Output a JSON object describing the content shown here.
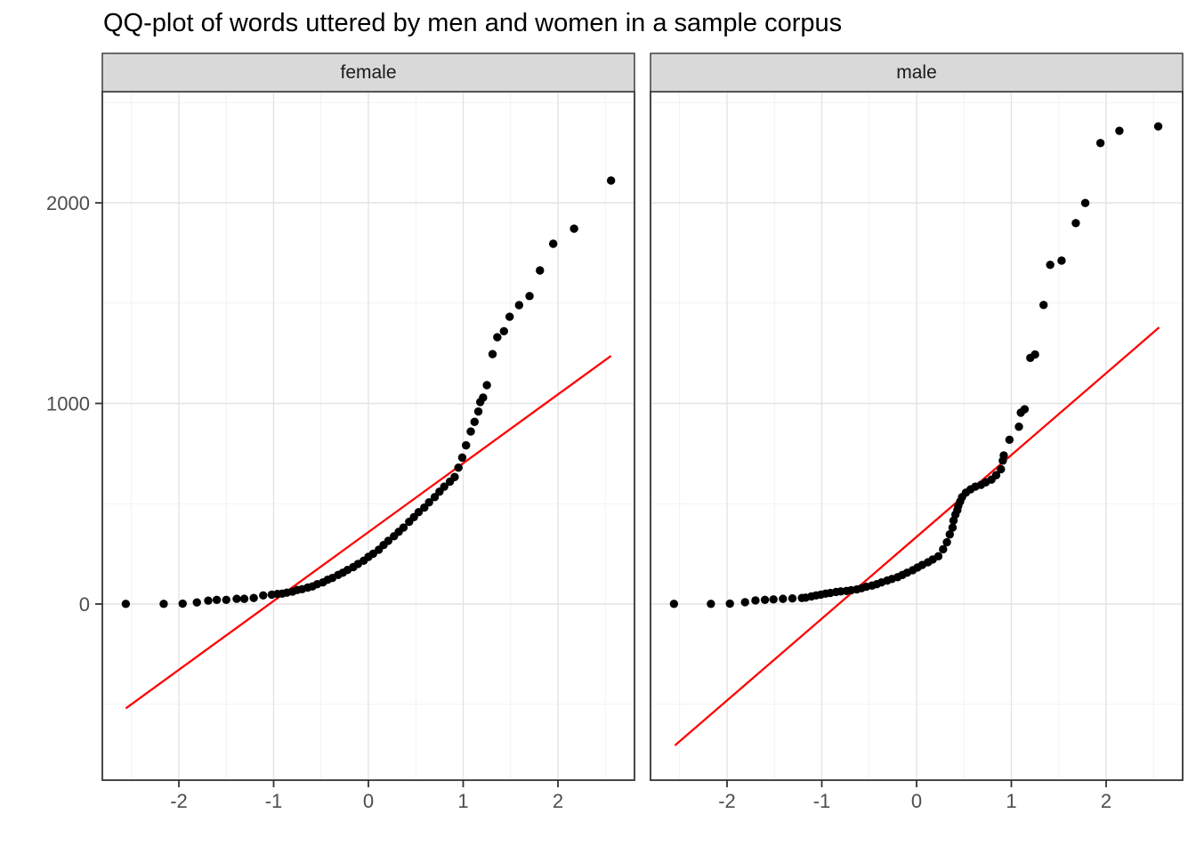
{
  "title": "QQ-plot of words uttered by men and women in a sample corpus",
  "chart_data": {
    "type": "scatter",
    "subtype": "faceted-qq-plot",
    "title": "QQ-plot of words uttered by men and women in a sample corpus",
    "xlabel": "",
    "ylabel": "",
    "grid": true,
    "legend": "none",
    "point_color": "#000000",
    "qq_line_color": "#FF0000",
    "strip_fill": "#D9D9D9",
    "xlim": [
      -2.81,
      2.81
    ],
    "ylim": [
      -878,
      2554
    ],
    "x_ticks": [
      -2,
      -1,
      0,
      1,
      2
    ],
    "y_ticks": [
      0,
      1000,
      2000
    ],
    "x_minor": [
      -2.5,
      -1.5,
      -0.5,
      0.5,
      1.5,
      2.5
    ],
    "y_minor": [
      -500,
      500,
      1500,
      2500
    ],
    "facets": [
      {
        "label": "female",
        "qq_line": {
          "x1": -2.56,
          "y1": -520,
          "x2": 2.56,
          "y2": 1237
        },
        "points": [
          [
            -2.56,
            1
          ],
          [
            -2.16,
            1
          ],
          [
            -1.96,
            2
          ],
          [
            -1.81,
            8
          ],
          [
            -1.69,
            17
          ],
          [
            -1.6,
            21
          ],
          [
            -1.5,
            21
          ],
          [
            -1.39,
            26
          ],
          [
            -1.31,
            26
          ],
          [
            -1.21,
            30
          ],
          [
            -1.11,
            43
          ],
          [
            -1.02,
            47
          ],
          [
            -0.96,
            50
          ],
          [
            -0.91,
            52
          ],
          [
            -0.86,
            57
          ],
          [
            -0.8,
            62
          ],
          [
            -0.75,
            70
          ],
          [
            -0.7,
            74
          ],
          [
            -0.64,
            82
          ],
          [
            -0.59,
            88
          ],
          [
            -0.54,
            99
          ],
          [
            -0.48,
            108
          ],
          [
            -0.43,
            121
          ],
          [
            -0.38,
            130
          ],
          [
            -0.32,
            145
          ],
          [
            -0.27,
            156
          ],
          [
            -0.22,
            170
          ],
          [
            -0.16,
            184
          ],
          [
            -0.11,
            200
          ],
          [
            -0.05,
            216
          ],
          [
            0.0,
            235
          ],
          [
            0.05,
            251
          ],
          [
            0.11,
            271
          ],
          [
            0.16,
            294
          ],
          [
            0.21,
            315
          ],
          [
            0.27,
            338
          ],
          [
            0.32,
            360
          ],
          [
            0.37,
            381
          ],
          [
            0.43,
            410
          ],
          [
            0.48,
            433
          ],
          [
            0.53,
            458
          ],
          [
            0.59,
            481
          ],
          [
            0.64,
            507
          ],
          [
            0.7,
            533
          ],
          [
            0.75,
            560
          ],
          [
            0.8,
            585
          ],
          [
            0.86,
            610
          ],
          [
            0.91,
            633
          ],
          [
            0.95,
            680
          ],
          [
            0.99,
            730
          ],
          [
            1.03,
            791
          ],
          [
            1.08,
            860
          ],
          [
            1.12,
            908
          ],
          [
            1.16,
            960
          ],
          [
            1.18,
            1007
          ],
          [
            1.21,
            1029
          ],
          [
            1.25,
            1091
          ],
          [
            1.31,
            1246
          ],
          [
            1.36,
            1330
          ],
          [
            1.43,
            1360
          ],
          [
            1.49,
            1432
          ],
          [
            1.59,
            1490
          ],
          [
            1.7,
            1535
          ],
          [
            1.81,
            1663
          ],
          [
            1.95,
            1796
          ],
          [
            2.17,
            1871
          ],
          [
            2.56,
            2111
          ]
        ]
      },
      {
        "label": "male",
        "qq_line": {
          "x1": -2.55,
          "y1": -705,
          "x2": 2.56,
          "y2": 1379
        },
        "points": [
          [
            -2.56,
            1
          ],
          [
            -2.17,
            1
          ],
          [
            -1.97,
            2
          ],
          [
            -1.81,
            9
          ],
          [
            -1.7,
            18
          ],
          [
            -1.6,
            21
          ],
          [
            -1.51,
            23
          ],
          [
            -1.41,
            26
          ],
          [
            -1.31,
            28
          ],
          [
            -1.21,
            30
          ],
          [
            -1.17,
            32
          ],
          [
            -1.11,
            38
          ],
          [
            -1.06,
            43
          ],
          [
            -1.01,
            47
          ],
          [
            -0.96,
            52
          ],
          [
            -0.91,
            55
          ],
          [
            -0.85,
            60
          ],
          [
            -0.8,
            63
          ],
          [
            -0.74,
            65
          ],
          [
            -0.69,
            69
          ],
          [
            -0.63,
            73
          ],
          [
            -0.58,
            79
          ],
          [
            -0.53,
            86
          ],
          [
            -0.47,
            92
          ],
          [
            -0.42,
            99
          ],
          [
            -0.37,
            108
          ],
          [
            -0.31,
            117
          ],
          [
            -0.26,
            125
          ],
          [
            -0.2,
            134
          ],
          [
            -0.15,
            145
          ],
          [
            -0.1,
            156
          ],
          [
            -0.04,
            169
          ],
          [
            0.01,
            182
          ],
          [
            0.06,
            195
          ],
          [
            0.12,
            208
          ],
          [
            0.17,
            222
          ],
          [
            0.23,
            238
          ],
          [
            0.28,
            273
          ],
          [
            0.32,
            308
          ],
          [
            0.35,
            347
          ],
          [
            0.38,
            381
          ],
          [
            0.39,
            416
          ],
          [
            0.41,
            446
          ],
          [
            0.43,
            468
          ],
          [
            0.44,
            489
          ],
          [
            0.46,
            511
          ],
          [
            0.48,
            533
          ],
          [
            0.52,
            555
          ],
          [
            0.57,
            572
          ],
          [
            0.62,
            585
          ],
          [
            0.68,
            594
          ],
          [
            0.73,
            607
          ],
          [
            0.79,
            620
          ],
          [
            0.84,
            642
          ],
          [
            0.89,
            672
          ],
          [
            0.91,
            715
          ],
          [
            0.92,
            741
          ],
          [
            0.98,
            819
          ],
          [
            1.08,
            884
          ],
          [
            1.1,
            954
          ],
          [
            1.14,
            971
          ],
          [
            1.2,
            1227
          ],
          [
            1.25,
            1244
          ],
          [
            1.34,
            1491
          ],
          [
            1.41,
            1691
          ],
          [
            1.53,
            1712
          ],
          [
            1.68,
            1899
          ],
          [
            1.78,
            1999
          ],
          [
            1.94,
            2298
          ],
          [
            2.14,
            2359
          ],
          [
            2.55,
            2381
          ]
        ]
      }
    ]
  }
}
